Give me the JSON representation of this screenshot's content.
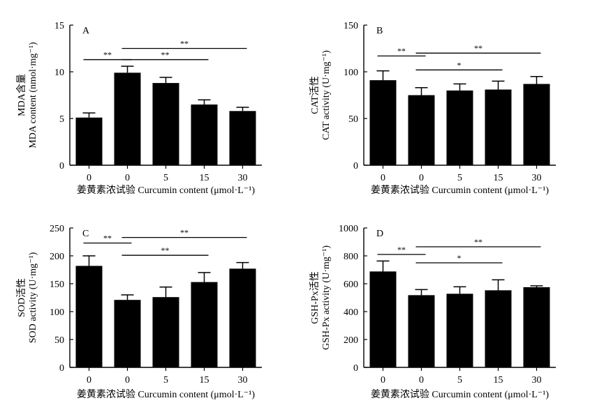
{
  "chart_data": [
    {
      "type": "bar",
      "panel": "A",
      "categories": [
        "0",
        "0",
        "5",
        "15",
        "30"
      ],
      "values": [
        5.1,
        9.9,
        8.8,
        6.5,
        5.8
      ],
      "errors": [
        0.5,
        0.7,
        0.6,
        0.5,
        0.4
      ],
      "ylim": [
        0,
        15
      ],
      "yticks": [
        0,
        5,
        10,
        15
      ],
      "ylabel_cn": "MDA含量",
      "ylabel": "MDA content (nmol·mg⁻¹)",
      "xlabel": "姜黄素浓试验 Curcumin content (μmol·L⁻¹)",
      "significance": [
        {
          "from": 0,
          "to": 1,
          "label": "**",
          "y": 11.3
        },
        {
          "from": 1,
          "to": 3,
          "label": "**",
          "y": 11.3
        },
        {
          "from": 1,
          "to": 4,
          "label": "**",
          "y": 12.5
        }
      ]
    },
    {
      "type": "bar",
      "panel": "B",
      "categories": [
        "0",
        "0",
        "5",
        "15",
        "30"
      ],
      "values": [
        91,
        75,
        80,
        81,
        87
      ],
      "errors": [
        10,
        8,
        7,
        9,
        8
      ],
      "ylim": [
        0,
        150
      ],
      "yticks": [
        0,
        50,
        100,
        150
      ],
      "ylabel_cn": "CAT活性",
      "ylabel": "CAT activity (U·mg⁻¹)",
      "xlabel": "姜黄素浓试验 Curcumin content (μmol·L⁻¹)",
      "significance": [
        {
          "from": 0,
          "to": 1,
          "label": "**",
          "y": 117
        },
        {
          "from": 1,
          "to": 3,
          "label": "*",
          "y": 102
        },
        {
          "from": 1,
          "to": 4,
          "label": "**",
          "y": 120
        }
      ]
    },
    {
      "type": "bar",
      "panel": "C",
      "categories": [
        "0",
        "0",
        "5",
        "15",
        "30"
      ],
      "values": [
        182,
        121,
        126,
        153,
        177
      ],
      "errors": [
        18,
        9,
        18,
        17,
        11
      ],
      "ylim": [
        0,
        250
      ],
      "yticks": [
        0,
        50,
        100,
        150,
        200,
        250
      ],
      "ylabel_cn": "SOD活性",
      "ylabel": "SOD activity (U·mg⁻¹)",
      "xlabel": "姜黄素浓试验 Curcumin content (μmol·L⁻¹)",
      "significance": [
        {
          "from": 0,
          "to": 1,
          "label": "**",
          "y": 223
        },
        {
          "from": 1,
          "to": 3,
          "label": "**",
          "y": 201
        },
        {
          "from": 1,
          "to": 4,
          "label": "**",
          "y": 233
        }
      ]
    },
    {
      "type": "bar",
      "panel": "D",
      "categories": [
        "0",
        "0",
        "5",
        "15",
        "30"
      ],
      "values": [
        688,
        518,
        528,
        553,
        575
      ],
      "errors": [
        75,
        40,
        50,
        75,
        10
      ],
      "ylim": [
        0,
        1000
      ],
      "yticks": [
        0,
        200,
        400,
        600,
        800,
        1000
      ],
      "ylabel_cn": "GSH-Px活性",
      "ylabel": "GSH-Px activity (U·mg⁻¹)",
      "xlabel": "姜黄素浓试验 Curcumin content (μmol·L⁻¹)",
      "significance": [
        {
          "from": 0,
          "to": 1,
          "label": "**",
          "y": 810
        },
        {
          "from": 1,
          "to": 3,
          "label": "*",
          "y": 750
        },
        {
          "from": 1,
          "to": 4,
          "label": "**",
          "y": 865
        }
      ]
    }
  ]
}
